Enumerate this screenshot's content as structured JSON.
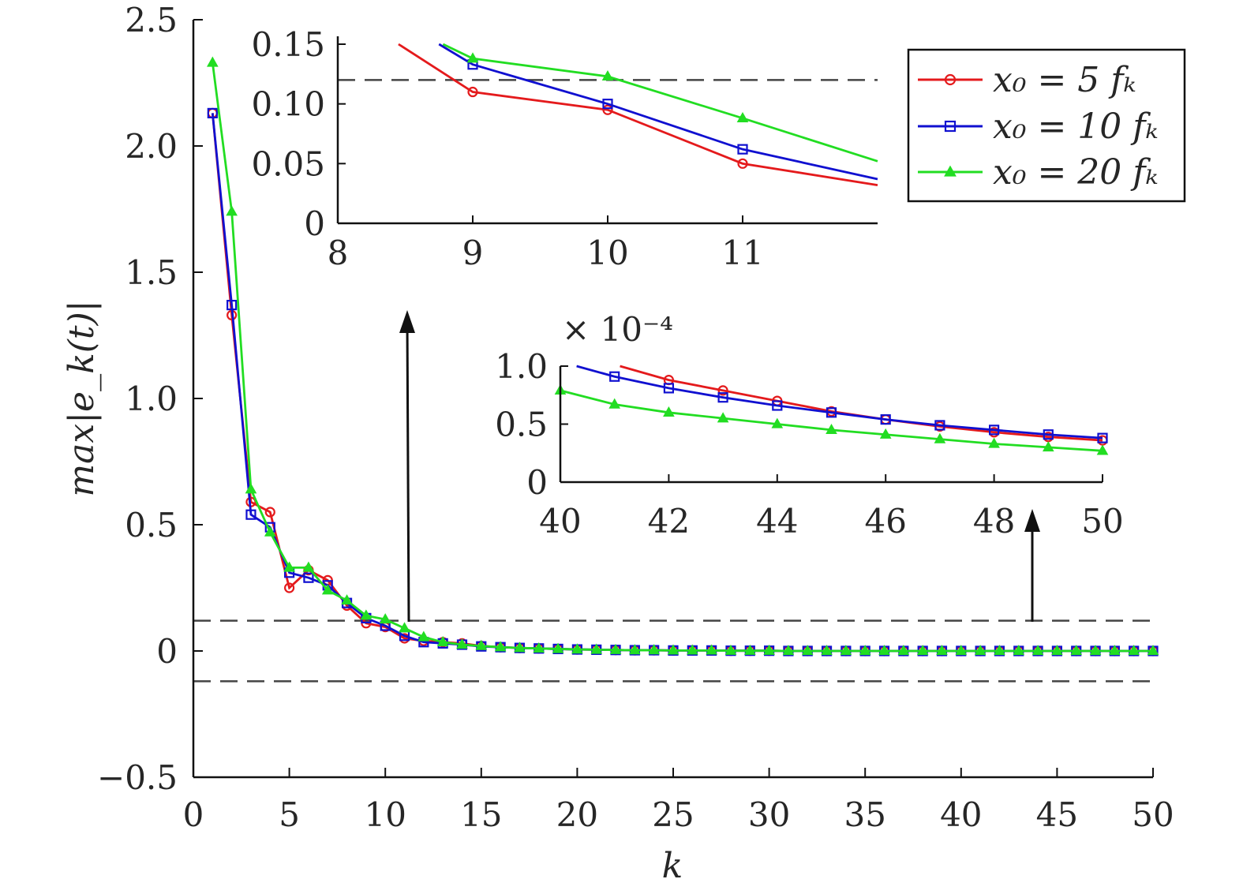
{
  "chart_data": [
    {
      "id": "main",
      "type": "line",
      "xlabel": "k",
      "ylabel": "max|e_k(t)|",
      "xlim": [
        0,
        50
      ],
      "ylim": [
        -0.5,
        2.5
      ],
      "xticks": [
        "0",
        "5",
        "10",
        "15",
        "20",
        "25",
        "30",
        "35",
        "40",
        "45",
        "50"
      ],
      "yticks": [
        "−0.5",
        "0",
        "0.5",
        "1.0",
        "1.5",
        "2.0",
        "2.5"
      ],
      "threshold": 0.12,
      "series": [
        {
          "name": "x0 = 5 f_k",
          "color": "#e41a1c",
          "marker": "circle",
          "x": [
            1,
            2,
            3,
            4,
            5,
            6,
            7,
            8,
            9,
            10,
            11,
            12,
            13,
            14,
            15,
            16,
            17,
            18,
            19,
            20,
            21,
            22,
            23,
            24,
            25,
            26,
            27,
            28,
            29,
            30,
            31,
            32,
            33,
            34,
            35,
            36,
            37,
            38,
            39,
            40,
            41,
            42,
            43,
            44,
            45,
            46,
            47,
            48,
            49,
            50
          ],
          "y": [
            2.13,
            1.33,
            0.59,
            0.55,
            0.25,
            0.32,
            0.28,
            0.18,
            0.11,
            0.095,
            0.05,
            0.04,
            0.035,
            0.03,
            0.02,
            0.015,
            0.012,
            0.01,
            0.008,
            0.006,
            0.005,
            0.004,
            0.003,
            0.003,
            0.002,
            0.002,
            0.002,
            0.001,
            0.001,
            0.001,
            0,
            0,
            0,
            0,
            0,
            0,
            0,
            0,
            0,
            0,
            0,
            0,
            0,
            0,
            0,
            0,
            0,
            0,
            0,
            0
          ]
        },
        {
          "name": "x0 = 10 f_k",
          "color": "#1010d0",
          "marker": "square",
          "x": [
            1,
            2,
            3,
            4,
            5,
            6,
            7,
            8,
            9,
            10,
            11,
            12,
            13,
            14,
            15,
            16,
            17,
            18,
            19,
            20,
            21,
            22,
            23,
            24,
            25,
            26,
            27,
            28,
            29,
            30,
            31,
            32,
            33,
            34,
            35,
            36,
            37,
            38,
            39,
            40,
            41,
            42,
            43,
            44,
            45,
            46,
            47,
            48,
            49,
            50
          ],
          "y": [
            2.13,
            1.37,
            0.54,
            0.49,
            0.31,
            0.29,
            0.26,
            0.19,
            0.13,
            0.1,
            0.06,
            0.035,
            0.03,
            0.025,
            0.018,
            0.015,
            0.012,
            0.01,
            0.008,
            0.006,
            0.005,
            0.004,
            0.003,
            0.003,
            0.002,
            0.002,
            0.002,
            0.001,
            0.001,
            0.001,
            0,
            0,
            0,
            0,
            0,
            0,
            0,
            0,
            0,
            0,
            0,
            0,
            0,
            0,
            0,
            0,
            0,
            0,
            0,
            0
          ]
        },
        {
          "name": "x0 = 20 f_k",
          "color": "#22dd22",
          "marker": "triangle",
          "x": [
            1,
            2,
            3,
            4,
            5,
            6,
            7,
            8,
            9,
            10,
            11,
            12,
            13,
            14,
            15,
            16,
            17,
            18,
            19,
            20,
            21,
            22,
            23,
            24,
            25,
            26,
            27,
            28,
            29,
            30,
            31,
            32,
            33,
            34,
            35,
            36,
            37,
            38,
            39,
            40,
            41,
            42,
            43,
            44,
            45,
            46,
            47,
            48,
            49,
            50
          ],
          "y": [
            2.33,
            1.74,
            0.64,
            0.47,
            0.33,
            0.33,
            0.24,
            0.2,
            0.14,
            0.125,
            0.09,
            0.055,
            0.035,
            0.025,
            0.02,
            0.015,
            0.012,
            0.01,
            0.008,
            0.006,
            0.005,
            0.004,
            0.003,
            0.003,
            0.002,
            0.002,
            0.002,
            0.001,
            0.001,
            0.001,
            0,
            0,
            0,
            0,
            0,
            0,
            0,
            0,
            0,
            0,
            0,
            0,
            0,
            0,
            0,
            0,
            0,
            0,
            0,
            0
          ]
        }
      ]
    },
    {
      "id": "inset-top",
      "type": "line",
      "xlim": [
        8,
        12
      ],
      "ylim": [
        0,
        0.15
      ],
      "xticks": [
        "8",
        "9",
        "10",
        "11"
      ],
      "yticks": [
        "0",
        "0.05",
        "0.10",
        "0.15"
      ],
      "threshold": 0.12,
      "series": [
        {
          "name": "x0 = 5 f_k",
          "color": "#e41a1c",
          "marker": "circle",
          "x": [
            8.45,
            9,
            10,
            11,
            12
          ],
          "y": [
            0.15,
            0.11,
            0.095,
            0.05,
            0.032
          ],
          "marker_x": [
            9,
            10,
            11
          ]
        },
        {
          "name": "x0 = 10 f_k",
          "color": "#1010d0",
          "marker": "square",
          "x": [
            8.75,
            9,
            10,
            11,
            12
          ],
          "y": [
            0.15,
            0.133,
            0.1,
            0.062,
            0.037
          ],
          "marker_x": [
            9,
            10,
            11
          ]
        },
        {
          "name": "x0 = 20 f_k",
          "color": "#22dd22",
          "marker": "triangle",
          "x": [
            8.78,
            9,
            10,
            11,
            12
          ],
          "y": [
            0.15,
            0.138,
            0.123,
            0.088,
            0.052
          ],
          "marker_x": [
            9,
            10,
            11
          ]
        }
      ]
    },
    {
      "id": "inset-bottom",
      "type": "line",
      "xlim": [
        40,
        50
      ],
      "ylim": [
        0,
        1.0
      ],
      "scale_label": "× 10⁻⁴",
      "xticks": [
        "40",
        "42",
        "44",
        "46",
        "48",
        "50"
      ],
      "yticks": [
        "0",
        "0.5",
        "1.0"
      ],
      "series": [
        {
          "name": "x0 = 5 f_k",
          "color": "#e41a1c",
          "marker": "circle",
          "x": [
            41.1,
            42,
            43,
            44,
            45,
            46,
            47,
            48,
            49,
            50
          ],
          "y": [
            1.0,
            0.88,
            0.79,
            0.7,
            0.61,
            0.54,
            0.48,
            0.43,
            0.39,
            0.36
          ],
          "marker_x": [
            42,
            43,
            44,
            45,
            46,
            47,
            48,
            49,
            50
          ]
        },
        {
          "name": "x0 = 10 f_k",
          "color": "#1010d0",
          "marker": "square",
          "x": [
            40.3,
            41,
            42,
            43,
            44,
            45,
            46,
            47,
            48,
            49,
            50
          ],
          "y": [
            1.0,
            0.91,
            0.81,
            0.73,
            0.66,
            0.6,
            0.54,
            0.49,
            0.45,
            0.41,
            0.38
          ],
          "marker_x": [
            41,
            42,
            43,
            44,
            45,
            46,
            47,
            48,
            49,
            50
          ]
        },
        {
          "name": "x0 = 20 f_k",
          "color": "#22dd22",
          "marker": "triangle",
          "x": [
            40,
            41,
            42,
            43,
            44,
            45,
            46,
            47,
            48,
            49,
            50
          ],
          "y": [
            0.79,
            0.67,
            0.6,
            0.55,
            0.5,
            0.45,
            0.41,
            0.37,
            0.33,
            0.3,
            0.27
          ],
          "marker_x": [
            40,
            41,
            42,
            43,
            44,
            45,
            46,
            47,
            48,
            49,
            50
          ]
        }
      ]
    }
  ],
  "legend": [
    {
      "label": "x₀ = 5 fₖ",
      "color": "#e41a1c",
      "marker": "circle"
    },
    {
      "label": "x₀ = 10 fₖ",
      "color": "#1010d0",
      "marker": "square"
    },
    {
      "label": "x₀ = 20 fₖ",
      "color": "#22dd22",
      "marker": "triangle"
    }
  ]
}
